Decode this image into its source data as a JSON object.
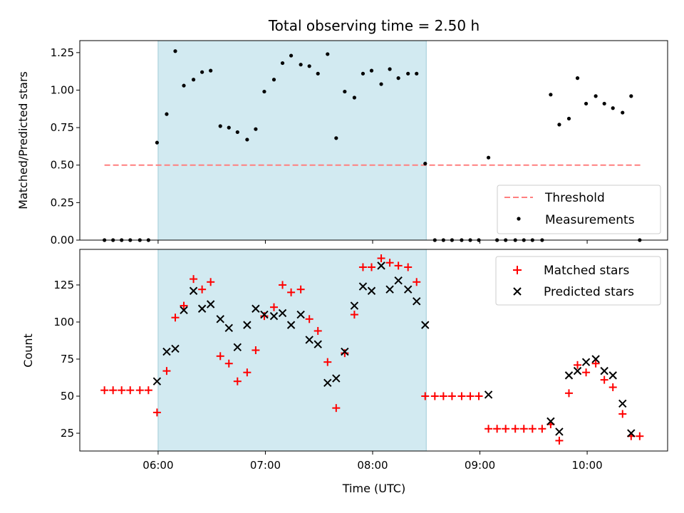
{
  "chart_data": [
    {
      "type": "scatter",
      "title": "Total observing time = 2.50 h",
      "xlabel": "",
      "ylabel": "Matched/Predicted stars",
      "xlim": [
        5.27,
        10.75
      ],
      "ylim": [
        0,
        1.33
      ],
      "yticks": [
        0.0,
        0.25,
        0.5,
        0.75,
        1.0,
        1.25
      ],
      "ytick_labels": [
        "0.00",
        "0.25",
        "0.50",
        "0.75",
        "1.00",
        "1.25"
      ],
      "xticks": [
        6,
        7,
        8,
        9,
        10
      ],
      "shaded_interval": [
        6.0,
        8.5
      ],
      "shaded_color": "#add8e6",
      "threshold": {
        "name": "Threshold",
        "y": 0.5,
        "x": [
          5.5,
          10.5
        ],
        "color": "#ff7f7f"
      },
      "series": [
        {
          "name": "Measurements",
          "color": "#000000",
          "x": [
            5.5,
            5.58,
            5.66,
            5.74,
            5.83,
            5.91,
            5.99,
            6.08,
            6.16,
            6.24,
            6.33,
            6.41,
            6.49,
            6.58,
            6.66,
            6.74,
            6.83,
            6.91,
            6.99,
            7.08,
            7.16,
            7.24,
            7.33,
            7.41,
            7.49,
            7.58,
            7.66,
            7.74,
            7.83,
            7.91,
            7.99,
            8.08,
            8.16,
            8.24,
            8.33,
            8.41,
            8.49,
            8.58,
            8.66,
            8.74,
            8.83,
            8.91,
            8.99,
            9.08,
            9.16,
            9.24,
            9.33,
            9.41,
            9.49,
            9.58,
            9.66,
            9.74,
            9.83,
            9.91,
            9.99,
            10.08,
            10.16,
            10.24,
            10.33,
            10.41,
            10.49
          ],
          "y": [
            0,
            0,
            0,
            0,
            0,
            0,
            0.65,
            0.84,
            1.26,
            1.03,
            1.07,
            1.12,
            1.13,
            0.76,
            0.75,
            0.72,
            0.67,
            0.74,
            0.99,
            1.07,
            1.18,
            1.23,
            1.17,
            1.16,
            1.11,
            1.24,
            0.68,
            0.99,
            0.95,
            1.11,
            1.13,
            1.04,
            1.14,
            1.08,
            1.11,
            1.11,
            0.51,
            0,
            0,
            0,
            0,
            0,
            0,
            0.55,
            0,
            0,
            0,
            0,
            0,
            0,
            0.97,
            0.77,
            0.81,
            1.08,
            0.91,
            0.96,
            0.91,
            0.88,
            0.85,
            0.96,
            0
          ]
        }
      ],
      "legend": {
        "placement": "lower-right",
        "entries": [
          "Threshold",
          "Measurements"
        ]
      }
    },
    {
      "type": "scatter",
      "title": "",
      "xlabel": "Time (UTC)",
      "ylabel": "Count",
      "xlim": [
        5.27,
        10.75
      ],
      "ylim": [
        13,
        149
      ],
      "yticks": [
        25,
        50,
        75,
        100,
        125
      ],
      "ytick_labels": [
        "25",
        "50",
        "75",
        "100",
        "125"
      ],
      "xticks": [
        6,
        7,
        8,
        9,
        10
      ],
      "xtick_labels": [
        "06:00",
        "07:00",
        "08:00",
        "09:00",
        "10:00"
      ],
      "shaded_interval": [
        6.0,
        8.5
      ],
      "shaded_color": "#add8e6",
      "series": [
        {
          "name": "Matched stars",
          "color": "#ff0000",
          "marker": "plus",
          "x": [
            5.5,
            5.58,
            5.66,
            5.74,
            5.83,
            5.91,
            5.99,
            6.08,
            6.16,
            6.24,
            6.33,
            6.41,
            6.49,
            6.58,
            6.66,
            6.74,
            6.83,
            6.91,
            6.99,
            7.08,
            7.16,
            7.24,
            7.33,
            7.41,
            7.49,
            7.58,
            7.66,
            7.74,
            7.83,
            7.91,
            7.99,
            8.08,
            8.16,
            8.24,
            8.33,
            8.41,
            8.49,
            8.58,
            8.66,
            8.74,
            8.83,
            8.91,
            8.99,
            9.08,
            9.16,
            9.24,
            9.33,
            9.41,
            9.49,
            9.58,
            9.66,
            9.74,
            9.83,
            9.91,
            9.99,
            10.08,
            10.16,
            10.24,
            10.33,
            10.41,
            10.49
          ],
          "y": [
            54,
            54,
            54,
            54,
            54,
            54,
            39,
            67,
            103,
            111,
            129,
            122,
            127,
            77,
            72,
            60,
            66,
            81,
            104,
            110,
            125,
            120,
            122,
            102,
            94,
            73,
            42,
            79,
            105,
            137,
            137,
            143,
            140,
            138,
            137,
            127,
            50,
            50,
            50,
            50,
            50,
            50,
            50,
            28,
            28,
            28,
            28,
            28,
            28,
            28,
            31,
            20,
            52,
            71,
            66,
            72,
            61,
            56,
            38,
            23,
            23
          ]
        },
        {
          "name": "Predicted stars",
          "color": "#000000",
          "marker": "cross",
          "x": [
            5.99,
            6.08,
            6.16,
            6.24,
            6.33,
            6.41,
            6.49,
            6.58,
            6.66,
            6.74,
            6.83,
            6.91,
            6.99,
            7.08,
            7.16,
            7.24,
            7.33,
            7.41,
            7.49,
            7.58,
            7.66,
            7.74,
            7.83,
            7.91,
            7.99,
            8.08,
            8.16,
            8.24,
            8.33,
            8.41,
            8.49,
            9.08,
            9.66,
            9.74,
            9.83,
            9.91,
            9.99,
            10.08,
            10.16,
            10.24,
            10.33,
            10.41
          ],
          "y": [
            60,
            80,
            82,
            108,
            121,
            109,
            112,
            102,
            96,
            83,
            98,
            109,
            105,
            104,
            106,
            98,
            105,
            88,
            85,
            59,
            62,
            80,
            111,
            124,
            121,
            138,
            122,
            128,
            122,
            114,
            98,
            51,
            33,
            26,
            64,
            67,
            73,
            75,
            67,
            64,
            45,
            25
          ]
        }
      ],
      "legend": {
        "placement": "upper-right",
        "entries": [
          "Matched stars",
          "Predicted stars"
        ]
      }
    }
  ]
}
